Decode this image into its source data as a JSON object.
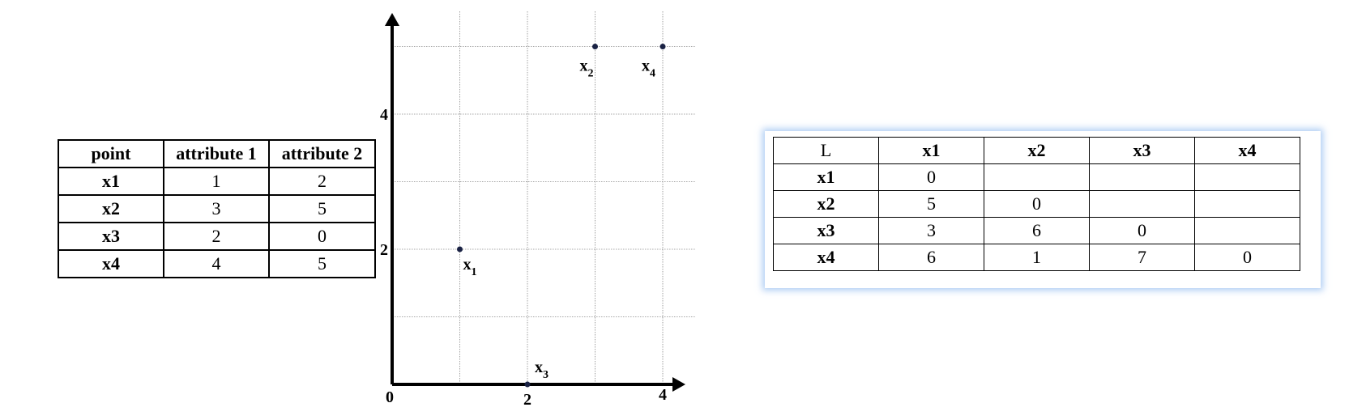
{
  "attribute_table": {
    "headers": [
      "point",
      "attribute 1",
      "attribute 2"
    ],
    "rows": [
      [
        "x1",
        "1",
        "2"
      ],
      [
        "x2",
        "3",
        "5"
      ],
      [
        "x3",
        "2",
        "0"
      ],
      [
        "x4",
        "4",
        "5"
      ]
    ]
  },
  "plot": {
    "x_ticks": [
      "0",
      "2",
      "4"
    ],
    "y_ticks": [
      "2",
      "4"
    ],
    "xlim": [
      0,
      4.4
    ],
    "ylim": [
      0,
      5.5
    ],
    "grid": true,
    "points": [
      {
        "name": "x",
        "sub": "1",
        "x": 1,
        "y": 2
      },
      {
        "name": "x",
        "sub": "2",
        "x": 3,
        "y": 5
      },
      {
        "name": "x",
        "sub": "3",
        "x": 2,
        "y": 0
      },
      {
        "name": "x",
        "sub": "4",
        "x": 4,
        "y": 5
      }
    ],
    "colors": {
      "axis": "#000000",
      "grid": "#8a8a8a",
      "point": "#1a2244"
    }
  },
  "distance_table": {
    "headers": [
      "L",
      "x1",
      "x2",
      "x3",
      "x4"
    ],
    "rows": [
      [
        "x1",
        "0",
        "",
        "",
        ""
      ],
      [
        "x2",
        "5",
        "0",
        "",
        ""
      ],
      [
        "x3",
        "3",
        "6",
        "0",
        ""
      ],
      [
        "x4",
        "6",
        "1",
        "7",
        "0"
      ]
    ]
  }
}
